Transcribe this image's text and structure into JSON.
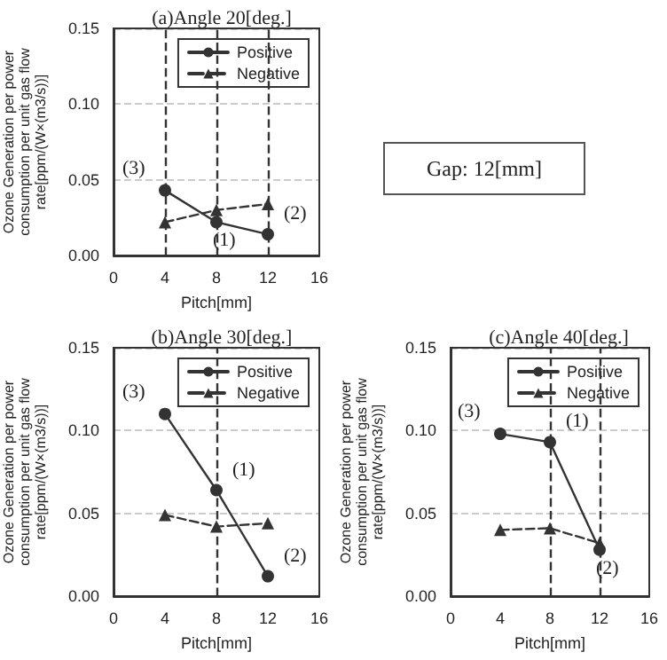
{
  "chart_data": [
    {
      "type": "line",
      "title": "(a)Angle 20[deg.]",
      "xlabel": "Pitch[mm]",
      "ylabel": "Ozone Generation per power consumption per unit gas flow rate[ppm/(W×(m3/s))]",
      "x": [
        4,
        8,
        12
      ],
      "series": [
        {
          "name": "Positive",
          "color": "#333333",
          "marker": "circle",
          "line_style": "solid",
          "values": [
            0.043,
            0.022,
            0.014
          ]
        },
        {
          "name": "Negative",
          "color": "#333333",
          "marker": "triangle",
          "line_style": "dashed",
          "values": [
            0.022,
            0.03,
            0.034
          ]
        }
      ],
      "xlim": [
        0,
        16
      ],
      "xticks": [
        0,
        4,
        8,
        12,
        16
      ],
      "ylim": [
        0,
        0.15
      ],
      "yticks": [
        {
          "value": 0,
          "label": "0.00"
        },
        {
          "value": 0.05,
          "label": "0.05"
        },
        {
          "value": 0.1,
          "label": "0.10"
        },
        {
          "value": 0.15,
          "label": "0.15"
        }
      ],
      "grid": "y",
      "legend": "top right",
      "ref_lines": [
        {
          "axis": "x",
          "value": 4,
          "color": "#333333",
          "line_style": "dashed"
        },
        {
          "axis": "x",
          "value": 8,
          "color": "#333333",
          "line_style": "dashed"
        },
        {
          "axis": "x",
          "value": 12,
          "color": "#333333",
          "line_style": "dashed"
        }
      ],
      "annotations": [
        {
          "text": "(3)",
          "x": 4,
          "y": 0.043
        },
        {
          "text": "(1)",
          "x": 8,
          "y": 0.022
        },
        {
          "text": "(2)",
          "x": 12,
          "y": 0.014
        }
      ]
    },
    {
      "type": "line",
      "title": "(b)Angle 30[deg.]",
      "xlabel": "Pitch[mm]",
      "ylabel": "Ozone Generation per power consumption per unit gas flow rate[ppm/(W×(m3/s))]",
      "x": [
        4,
        8,
        12
      ],
      "series": [
        {
          "name": "Positive",
          "color": "#333333",
          "marker": "circle",
          "line_style": "solid",
          "values": [
            0.11,
            0.064,
            0.012
          ]
        },
        {
          "name": "Negative",
          "color": "#333333",
          "marker": "triangle",
          "line_style": "dashed",
          "values": [
            0.049,
            0.042,
            0.044
          ]
        }
      ],
      "xlim": [
        0,
        16
      ],
      "xticks": [
        0,
        4,
        8,
        12,
        16
      ],
      "ylim": [
        0,
        0.15
      ],
      "yticks": [
        {
          "value": 0,
          "label": "0.00"
        },
        {
          "value": 0.05,
          "label": "0.05"
        },
        {
          "value": 0.1,
          "label": "0.10"
        },
        {
          "value": 0.15,
          "label": "0.15"
        }
      ],
      "grid": "y",
      "legend": "top right",
      "ref_lines": [
        {
          "axis": "x",
          "value": 8,
          "color": "#333333",
          "line_style": "dashed"
        }
      ],
      "annotations": [
        {
          "text": "(3)",
          "x": 4,
          "y": 0.11
        },
        {
          "text": "(1)",
          "x": 8,
          "y": 0.064
        },
        {
          "text": "(2)",
          "x": 12,
          "y": 0.012
        }
      ]
    },
    {
      "type": "line",
      "title": "(c)Angle 40[deg.]",
      "xlabel": "Pitch[mm]",
      "ylabel": "Ozone Generation per power consumption per unit gas flow rate[ppm/(W×(m3/s))]",
      "x": [
        4,
        8,
        12
      ],
      "series": [
        {
          "name": "Positive",
          "color": "#333333",
          "marker": "circle",
          "line_style": "solid",
          "values": [
            0.098,
            0.093,
            0.028
          ]
        },
        {
          "name": "Negative",
          "color": "#333333",
          "marker": "triangle",
          "line_style": "dashed",
          "values": [
            0.04,
            0.041,
            0.032
          ]
        }
      ],
      "xlim": [
        0,
        16
      ],
      "xticks": [
        0,
        4,
        8,
        12,
        16
      ],
      "ylim": [
        0,
        0.15
      ],
      "yticks": [
        {
          "value": 0,
          "label": "0.00"
        },
        {
          "value": 0.05,
          "label": "0.05"
        },
        {
          "value": 0.1,
          "label": "0.10"
        },
        {
          "value": 0.15,
          "label": "0.15"
        }
      ],
      "grid": "y",
      "legend": "top right",
      "ref_lines": [
        {
          "axis": "x",
          "value": 8,
          "color": "#333333",
          "line_style": "dashed"
        },
        {
          "axis": "x",
          "value": 12,
          "color": "#333333",
          "line_style": "dashed"
        }
      ],
      "annotations": [
        {
          "text": "(3)",
          "x": 4,
          "y": 0.098
        },
        {
          "text": "(1)",
          "x": 8,
          "y": 0.093
        },
        {
          "text": "(2)",
          "x": 12,
          "y": 0.028
        }
      ]
    },
    {
      "type": "other",
      "annotations": [
        "Gap: 12[mm]"
      ]
    }
  ]
}
